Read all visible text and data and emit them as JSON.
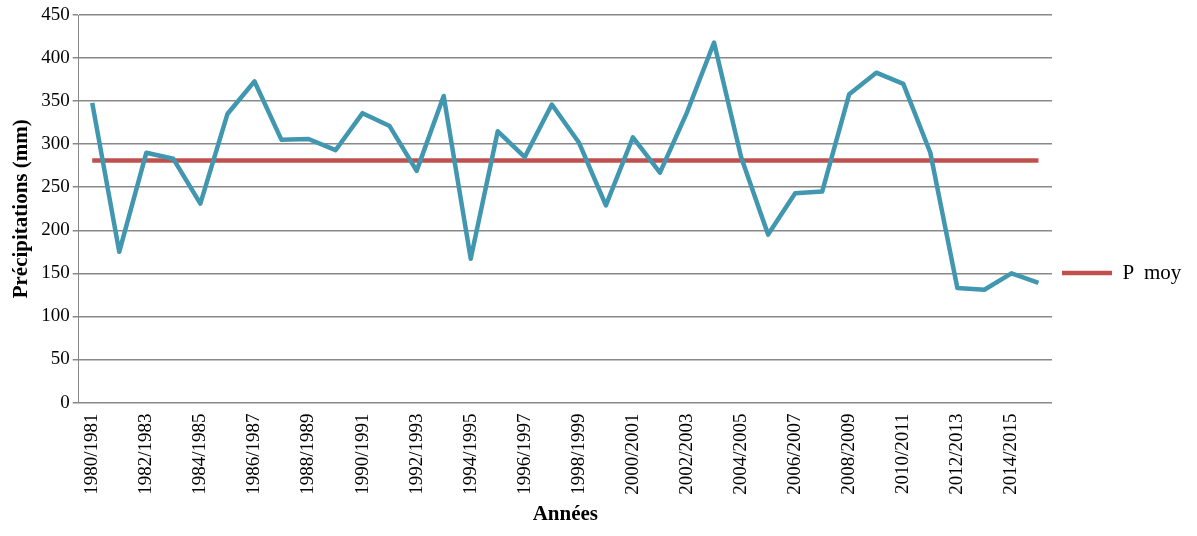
{
  "chart_data": {
    "type": "line",
    "xlabel": "Années",
    "ylabel": "Précipitations (mm)",
    "categories": [
      "1980/1981",
      null,
      "1982/1983",
      null,
      "1984/1985",
      null,
      "1986/1987",
      null,
      "1988/1989",
      null,
      "1990/1991",
      null,
      "1992/1993",
      null,
      "1994/1995",
      null,
      "1996/1997",
      null,
      "1998/1999",
      null,
      "2000/2001",
      null,
      "2002/2003",
      null,
      "2004/2005",
      null,
      "2006/2007",
      null,
      "2008/2009",
      null,
      "2010/2011",
      null,
      "2012/2013",
      null,
      "2014/2015",
      null
    ],
    "series": [
      {
        "color": "#4197b0",
        "values": [
          348,
          175,
          290,
          283,
          231,
          335,
          373,
          305,
          306,
          293,
          336,
          321,
          269,
          356,
          167,
          315,
          285,
          346,
          302,
          229,
          308,
          267,
          337,
          418,
          285,
          195,
          243,
          245,
          358,
          383,
          370,
          290,
          133,
          131,
          150,
          139
        ]
      },
      {
        "name": "P  moy",
        "color": "#c0504d",
        "values": [
          281,
          281,
          281,
          281,
          281,
          281,
          281,
          281,
          281,
          281,
          281,
          281,
          281,
          281,
          281,
          281,
          281,
          281,
          281,
          281,
          281,
          281,
          281,
          281,
          281,
          281,
          281,
          281,
          281,
          281,
          281,
          281,
          281,
          281,
          281,
          281
        ]
      }
    ],
    "ylim": [
      0,
      450
    ],
    "yticks": [
      0,
      50,
      100,
      150,
      200,
      250,
      300,
      350,
      400,
      450
    ],
    "grid": "y",
    "legend": "right",
    "marker": "none",
    "line_style": "solid"
  }
}
